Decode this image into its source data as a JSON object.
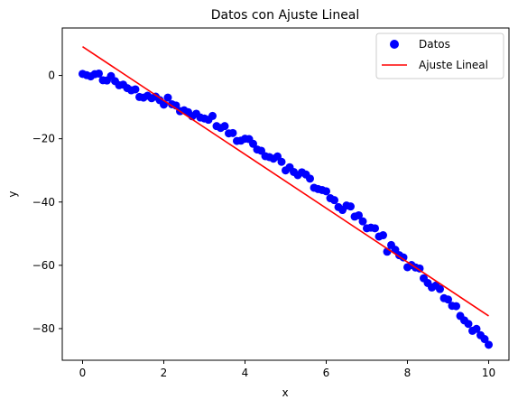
{
  "chart_data": {
    "type": "scatter",
    "title": "Datos con Ajuste Lineal",
    "xlabel": "x",
    "ylabel": "y",
    "xlim": [
      -0.5,
      10.5
    ],
    "ylim": [
      -90,
      15
    ],
    "xticks": [
      0,
      2,
      4,
      6,
      8,
      10
    ],
    "yticks": [
      0,
      -20,
      -40,
      -60,
      -80
    ],
    "grid": false,
    "legend_position": "top-right",
    "series": [
      {
        "name": "Datos",
        "type": "scatter",
        "color": "#0000ff",
        "x": [
          0.0,
          0.1,
          0.2,
          0.3,
          0.4,
          0.5,
          0.6,
          0.7,
          0.8,
          0.9,
          1.0,
          1.1,
          1.2,
          1.3,
          1.4,
          1.5,
          1.6,
          1.7,
          1.8,
          1.9,
          2.0,
          2.1,
          2.2,
          2.3,
          2.4,
          2.5,
          2.6,
          2.7,
          2.8,
          2.9,
          3.0,
          3.1,
          3.2,
          3.3,
          3.4,
          3.5,
          3.6,
          3.7,
          3.8,
          3.9,
          4.0,
          4.1,
          4.2,
          4.3,
          4.4,
          4.5,
          4.6,
          4.7,
          4.8,
          4.9,
          5.0,
          5.1,
          5.2,
          5.3,
          5.4,
          5.5,
          5.6,
          5.7,
          5.8,
          5.9,
          6.0,
          6.1,
          6.2,
          6.3,
          6.4,
          6.5,
          6.6,
          6.7,
          6.8,
          6.9,
          7.0,
          7.1,
          7.2,
          7.3,
          7.4,
          7.5,
          7.6,
          7.7,
          7.8,
          7.9,
          8.0,
          8.1,
          8.2,
          8.3,
          8.4,
          8.5,
          8.6,
          8.7,
          8.8,
          8.9,
          9.0,
          9.1,
          9.2,
          9.3,
          9.4,
          9.5,
          9.6,
          9.7,
          9.8,
          9.9,
          10.0
        ],
        "y": [
          0.5,
          0.1,
          -0.3,
          0.4,
          0.6,
          -1.5,
          -1.6,
          -0.2,
          -1.8,
          -3.1,
          -2.9,
          -4.0,
          -4.7,
          -4.4,
          -6.8,
          -7.0,
          -6.4,
          -7.2,
          -6.7,
          -7.8,
          -9.2,
          -7.0,
          -9.1,
          -9.5,
          -11.3,
          -11.0,
          -11.6,
          -12.9,
          -12.1,
          -13.3,
          -13.6,
          -14.0,
          -12.8,
          -16.0,
          -16.6,
          -16.0,
          -18.3,
          -18.2,
          -20.7,
          -20.6,
          -20.0,
          -20.1,
          -21.6,
          -23.4,
          -23.8,
          -25.5,
          -25.8,
          -26.3,
          -25.6,
          -27.3,
          -30.0,
          -29.0,
          -30.5,
          -31.5,
          -30.6,
          -31.3,
          -32.6,
          -35.5,
          -35.9,
          -36.2,
          -36.6,
          -38.8,
          -39.4,
          -41.6,
          -42.5,
          -41.1,
          -41.4,
          -44.6,
          -44.2,
          -46.1,
          -48.3,
          -48.1,
          -48.3,
          -50.9,
          -50.5,
          -55.7,
          -53.6,
          -55.1,
          -56.8,
          -57.5,
          -60.6,
          -59.9,
          -60.7,
          -61.0,
          -64.1,
          -65.6,
          -67.0,
          -66.4,
          -67.5,
          -70.4,
          -70.8,
          -72.8,
          -72.9,
          -76.0,
          -77.4,
          -78.5,
          -80.7,
          -80.1,
          -82.1,
          -83.3,
          -85.1
        ]
      },
      {
        "name": "Ajuste Lineal",
        "type": "line",
        "color": "#ff0000",
        "x": [
          0,
          10
        ],
        "y": [
          9.1,
          -76.0
        ]
      }
    ]
  }
}
